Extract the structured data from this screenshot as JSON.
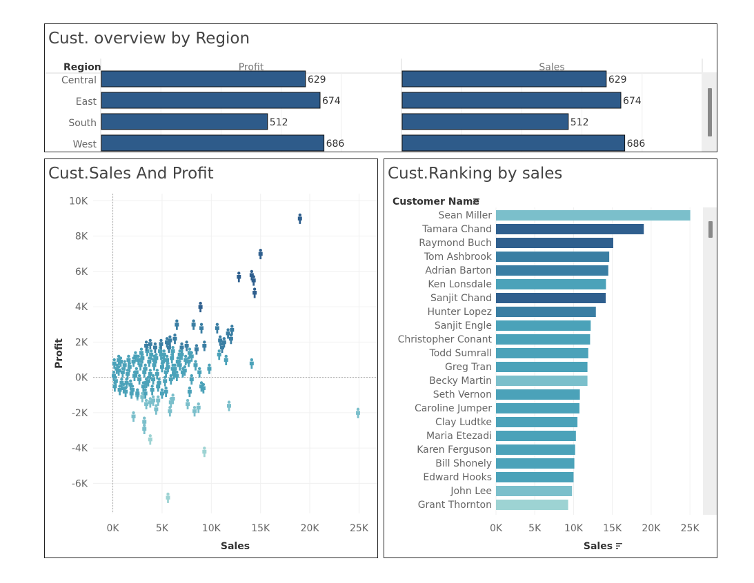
{
  "panels": {
    "region": {
      "title": "Cust. overview by Region"
    },
    "scatter": {
      "title": "Cust.Sales And Profit"
    },
    "ranking": {
      "title": "Cust.Ranking by sales"
    }
  },
  "colors": {
    "region_bar": "#2e5b8a",
    "rank_dark": "#2f5f8e",
    "rank_mid": "#3a7ea3",
    "rank_teal": "#4ba2b9",
    "rank_light": "#7bbfcb",
    "rank_pale": "#9dd3d3"
  },
  "chart_data": [
    {
      "type": "bar",
      "orientation": "horizontal",
      "row_header": "Region",
      "categories": [
        "Central",
        "East",
        "South",
        "West"
      ],
      "series": [
        {
          "name": "Profit",
          "values": [
            629,
            674,
            512,
            686
          ]
        },
        {
          "name": "Sales",
          "values": [
            629,
            674,
            512,
            686
          ]
        }
      ],
      "grid": true
    },
    {
      "type": "scatter",
      "marker": "person-icon",
      "xlabel": "Sales",
      "ylabel": "Profit",
      "xlim": [
        -2000,
        27000
      ],
      "ylim": [
        -7700,
        10400
      ],
      "xticks": [
        "0K",
        "5K",
        "10K",
        "15K",
        "20K",
        "25K"
      ],
      "xtick_values": [
        0,
        5000,
        10000,
        15000,
        20000,
        25000
      ],
      "yticks": [
        "10K",
        "8K",
        "6K",
        "4K",
        "2K",
        "0K",
        "-2K",
        "-4K",
        "-6K"
      ],
      "ytick_values": [
        10000,
        8000,
        6000,
        4000,
        2000,
        0,
        -2000,
        -4000,
        -6000
      ],
      "points": [
        [
          19000,
          9000
        ],
        [
          15000,
          7000
        ],
        [
          12800,
          5700
        ],
        [
          14100,
          5800
        ],
        [
          14300,
          5500
        ],
        [
          14400,
          4800
        ],
        [
          8900,
          4000
        ],
        [
          6500,
          3000
        ],
        [
          8200,
          3000
        ],
        [
          9000,
          2800
        ],
        [
          10600,
          2800
        ],
        [
          11700,
          2500
        ],
        [
          12100,
          2700
        ],
        [
          10900,
          2100
        ],
        [
          12000,
          2200
        ],
        [
          11100,
          1700
        ],
        [
          10800,
          1300
        ],
        [
          11300,
          2000
        ],
        [
          11500,
          1000
        ],
        [
          14100,
          800
        ],
        [
          9800,
          500
        ],
        [
          7000,
          1300
        ],
        [
          7500,
          1800
        ],
        [
          8000,
          1200
        ],
        [
          8500,
          1600
        ],
        [
          9300,
          1800
        ],
        [
          7700,
          900
        ],
        [
          5500,
          2000
        ],
        [
          6300,
          2200
        ],
        [
          6800,
          700
        ],
        [
          6100,
          500
        ],
        [
          4900,
          1300
        ],
        [
          4200,
          1000
        ],
        [
          3800,
          1900
        ],
        [
          8400,
          700
        ],
        [
          7300,
          400
        ],
        [
          8800,
          300
        ],
        [
          8000,
          -100
        ],
        [
          7800,
          -800
        ],
        [
          9000,
          -500
        ],
        [
          7600,
          -1500
        ],
        [
          6100,
          -1200
        ],
        [
          5400,
          -800
        ],
        [
          4600,
          -1300
        ],
        [
          4100,
          -1300
        ],
        [
          3800,
          -1400
        ],
        [
          3400,
          -1500
        ],
        [
          4400,
          -1800
        ],
        [
          5000,
          -900
        ],
        [
          5900,
          -1400
        ],
        [
          5800,
          -1900
        ],
        [
          8300,
          -1900
        ],
        [
          8700,
          -1700
        ],
        [
          9200,
          -600
        ],
        [
          11800,
          -1600
        ],
        [
          24900,
          -2000
        ],
        [
          3200,
          -2500
        ],
        [
          3200,
          -2900
        ],
        [
          2100,
          -2200
        ],
        [
          3800,
          -3500
        ],
        [
          9300,
          -4200
        ],
        [
          5600,
          -6800
        ],
        [
          3000,
          -1100
        ],
        [
          2500,
          -900
        ],
        [
          3400,
          -300
        ]
      ],
      "density_blob": [
        [
          100,
          100
        ],
        [
          300,
          -200
        ],
        [
          600,
          400
        ],
        [
          900,
          -300
        ],
        [
          1200,
          700
        ],
        [
          1500,
          200
        ],
        [
          1800,
          -400
        ],
        [
          2100,
          900
        ],
        [
          2400,
          300
        ],
        [
          2700,
          -100
        ],
        [
          3000,
          1100
        ],
        [
          3300,
          500
        ],
        [
          3600,
          -200
        ],
        [
          3900,
          1300
        ],
        [
          4200,
          700
        ],
        [
          4500,
          200
        ],
        [
          4800,
          1500
        ],
        [
          5100,
          900
        ],
        [
          5400,
          300
        ],
        [
          5700,
          1700
        ],
        [
          6000,
          1100
        ],
        [
          6300,
          500
        ],
        [
          400,
          500
        ],
        [
          800,
          900
        ],
        [
          1100,
          -600
        ],
        [
          1600,
          1000
        ],
        [
          2000,
          -700
        ],
        [
          2300,
          1200
        ],
        [
          2800,
          700
        ],
        [
          3100,
          -500
        ],
        [
          3500,
          1500
        ],
        [
          3800,
          200
        ],
        [
          4300,
          1700
        ],
        [
          4700,
          -300
        ],
        [
          5200,
          1300
        ],
        [
          5600,
          600
        ],
        [
          6100,
          1500
        ],
        [
          6600,
          900
        ],
        [
          7000,
          1700
        ],
        [
          200,
          -500
        ],
        [
          700,
          -700
        ],
        [
          1300,
          -800
        ],
        [
          1900,
          -900
        ],
        [
          2500,
          -1000
        ],
        [
          3300,
          -900
        ],
        [
          4000,
          -700
        ],
        [
          4600,
          -500
        ],
        [
          5300,
          -200
        ],
        [
          5900,
          -100
        ],
        [
          6500,
          100
        ],
        [
          7100,
          300
        ],
        [
          1000,
          300
        ],
        [
          1400,
          -300
        ],
        [
          1700,
          600
        ],
        [
          2200,
          100
        ],
        [
          2600,
          1000
        ],
        [
          3200,
          300
        ],
        [
          3700,
          900
        ],
        [
          4100,
          -100
        ],
        [
          4400,
          1100
        ],
        [
          5000,
          600
        ],
        [
          5500,
          1000
        ],
        [
          6200,
          200
        ],
        [
          6800,
          1300
        ],
        [
          7400,
          1000
        ],
        [
          7800,
          1400
        ],
        [
          2900,
          1400
        ],
        [
          3400,
          1800
        ],
        [
          4900,
          1900
        ],
        [
          5800,
          2100
        ],
        [
          600,
          1000
        ],
        [
          150,
          800
        ]
      ]
    },
    {
      "type": "bar",
      "orientation": "horizontal",
      "row_header": "Customer Name",
      "xlabel": "Sales",
      "xlim": [
        0,
        26500
      ],
      "xticks": [
        "0K",
        "5K",
        "10K",
        "15K",
        "20K",
        "25K"
      ],
      "xtick_values": [
        0,
        5000,
        10000,
        15000,
        20000,
        25000
      ],
      "categories": [
        "Sean Miller",
        "Tamara Chand",
        "Raymond Buch",
        "Tom Ashbrook",
        "Adrian Barton",
        "Ken Lonsdale",
        "Sanjit Chand",
        "Hunter Lopez",
        "Sanjit Engle",
        "Christopher Conant",
        "Todd Sumrall",
        "Greg Tran",
        "Becky Martin",
        "Seth Vernon",
        "Caroline Jumper",
        "Clay Ludtke",
        "Maria Etezadi",
        "Karen Ferguson",
        "Bill Shonely",
        "Edward Hooks",
        "John Lee",
        "Grant Thornton"
      ],
      "values": [
        25043,
        19052,
        15117,
        14596,
        14474,
        14175,
        14142,
        12873,
        12209,
        12129,
        11892,
        11790,
        11790,
        10812,
        10758,
        10500,
        10300,
        10200,
        10100,
        10000,
        9800,
        9300
      ],
      "bar_colors": [
        "rank_light",
        "rank_dark",
        "rank_dark",
        "rank_mid",
        "rank_mid",
        "rank_teal",
        "rank_dark",
        "rank_mid",
        "rank_teal",
        "rank_teal",
        "rank_teal",
        "rank_teal",
        "rank_light",
        "rank_teal",
        "rank_teal",
        "rank_teal",
        "rank_teal",
        "rank_teal",
        "rank_teal",
        "rank_teal",
        "rank_light",
        "rank_pale"
      ]
    }
  ]
}
